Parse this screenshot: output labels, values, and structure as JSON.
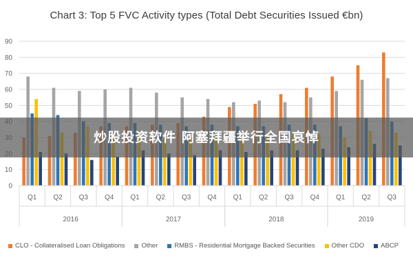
{
  "chart_data": {
    "type": "bar",
    "title": "Chart 3: Top 5 FVC Activity types (Total Debt Securities Issued €bn)",
    "ylim": [
      0,
      90
    ],
    "yticks": [
      0,
      10,
      20,
      30,
      40,
      50,
      60,
      70,
      80,
      90
    ],
    "grid": true,
    "legend_position": "bottom",
    "categories": [
      "Q1",
      "Q2",
      "Q3",
      "Q4",
      "Q1",
      "Q2",
      "Q3",
      "Q4",
      "Q1",
      "Q2",
      "Q3",
      "Q4",
      "Q1",
      "Q2",
      "Q3"
    ],
    "year_groups": [
      {
        "label": "2016",
        "start": 0,
        "count": 4
      },
      {
        "label": "2017",
        "start": 4,
        "count": 4
      },
      {
        "label": "2018",
        "start": 8,
        "count": 4
      },
      {
        "label": "2019",
        "start": 12,
        "count": 3
      }
    ],
    "series": [
      {
        "name": "CLO - Collateralised Loan Obligations",
        "color": "#ed7d31",
        "values": [
          30,
          31,
          33,
          37,
          37,
          38,
          39,
          43,
          49,
          51,
          57,
          61,
          68,
          75,
          83
        ]
      },
      {
        "name": "Other",
        "color": "#a5a5a5",
        "values": [
          68,
          61,
          59,
          60,
          61,
          58,
          55,
          54,
          52,
          53,
          52,
          55,
          59,
          66,
          67
        ]
      },
      {
        "name": "RMBS - Residential Mortgage Backed Securities",
        "color": "#2e75b6",
        "values": [
          45,
          44,
          40,
          39,
          39,
          38,
          37,
          38,
          37,
          37,
          38,
          38,
          37,
          42,
          40
        ]
      },
      {
        "name": "Other CDO",
        "color": "#ffc000",
        "values": [
          54,
          33,
          37,
          32,
          31,
          31,
          30,
          31,
          30,
          31,
          32,
          32,
          30,
          34,
          33
        ]
      },
      {
        "name": "ABCP",
        "color": "#264478",
        "values": [
          21,
          20,
          16,
          18,
          22,
          20,
          19,
          22,
          21,
          22,
          22,
          23,
          24,
          26,
          25
        ]
      }
    ]
  },
  "overlay": {
    "banner_text": "炒股投资软件 阿塞拜疆举行全国哀悼"
  }
}
